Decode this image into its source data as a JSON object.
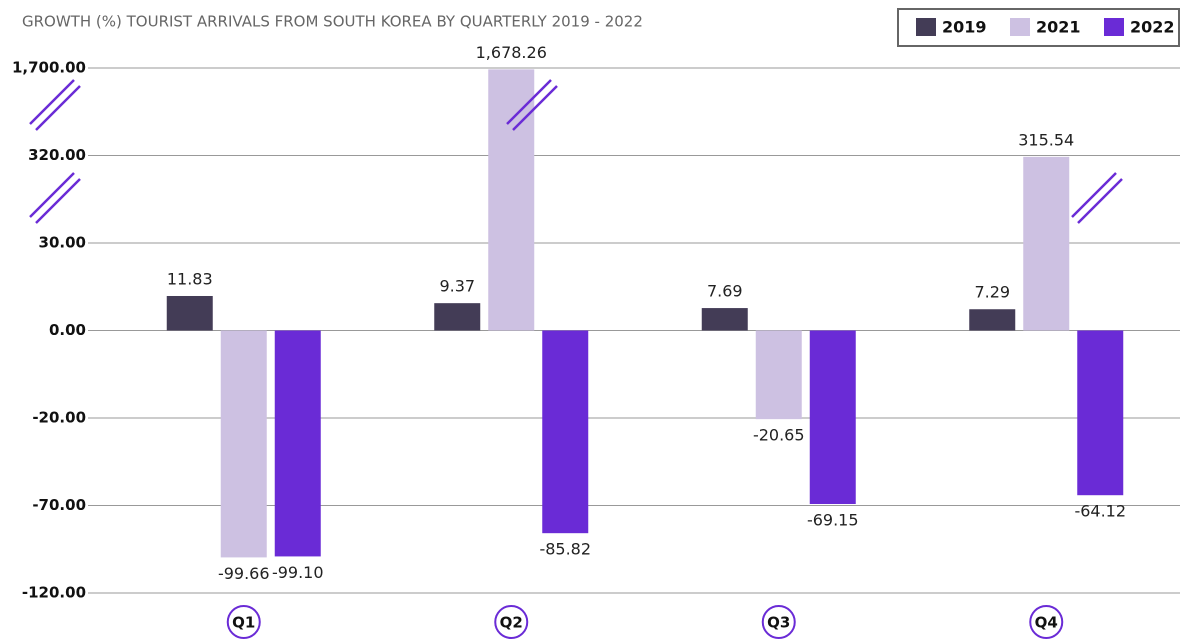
{
  "chart_data": {
    "type": "bar",
    "title": "GROWTH (%) TOURIST ARRIVALS FROM SOUTH KOREA BY QUARTERLY  2019 - 2022",
    "categories": [
      "Q1",
      "Q2",
      "Q3",
      "Q4"
    ],
    "series": [
      {
        "name": "2019",
        "color": "#433c56",
        "values": [
          11.83,
          9.37,
          7.69,
          7.29
        ]
      },
      {
        "name": "2021",
        "color": "#cdc1e2",
        "values": [
          -99.66,
          1678.26,
          -20.65,
          315.54
        ],
        "value_labels": [
          "-99.66",
          "1,678.26",
          "-20.65",
          "315.54"
        ]
      },
      {
        "name": "2022",
        "color": "#6a2bd6",
        "values": [
          -99.1,
          -85.82,
          -69.15,
          -64.12
        ],
        "value_labels": [
          "-99.10",
          "-85.82",
          "-69.15",
          "-64.12"
        ]
      }
    ],
    "ylim": [
      -120,
      1700
    ],
    "yticks": [
      {
        "value": 1700,
        "label": "1,700.00"
      },
      {
        "value": 320,
        "label": "320.00"
      },
      {
        "value": 30,
        "label": "30.00"
      },
      {
        "value": 0,
        "label": "0.00"
      },
      {
        "value": -20,
        "label": "-20.00"
      },
      {
        "value": -70,
        "label": "-70.00"
      },
      {
        "value": -120,
        "label": "-120.00"
      }
    ],
    "grid": true,
    "legend": "top-right"
  }
}
